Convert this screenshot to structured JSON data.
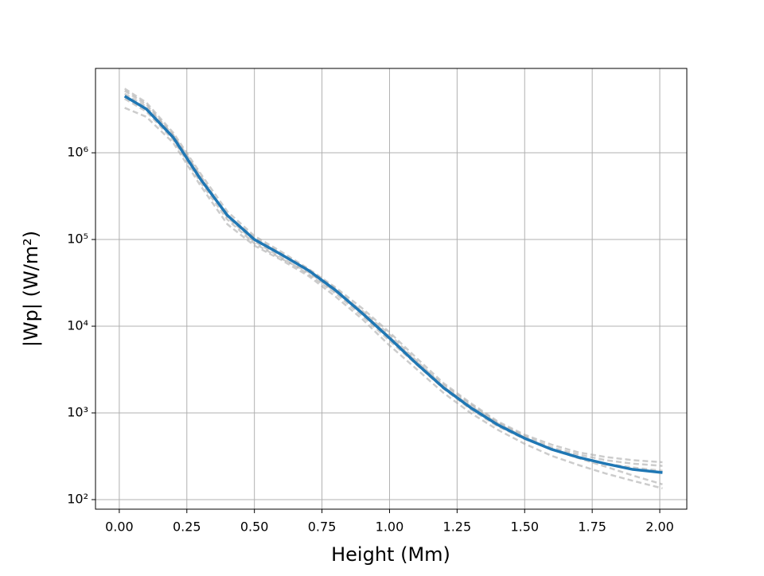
{
  "chart_data": {
    "type": "line",
    "xlabel": "Height (Mm)",
    "ylabel": "|Wp| (W/m²)",
    "log_y": true,
    "grid": true,
    "xlim": [
      -0.088,
      2.1
    ],
    "ylim": [
      77.6,
      9400000
    ],
    "xticks": [
      {
        "value": 0,
        "label": "0.00"
      },
      0.25,
      {
        "value": 0.5,
        "label": "0.50"
      },
      0.75,
      {
        "value": 1,
        "label": "1.00"
      },
      1.25,
      {
        "value": 1.5,
        "label": "1.50"
      },
      1.75,
      {
        "value": 2,
        "label": "2.00"
      }
    ],
    "yticks": [
      {
        "value": 100,
        "label": "10²"
      },
      {
        "value": 1000,
        "label": "10³"
      },
      {
        "value": 10000,
        "label": "10⁴"
      },
      {
        "value": 100000,
        "label": "10⁵"
      },
      {
        "value": 1000000,
        "label": "10⁶"
      }
    ],
    "x": [
      0.02,
      0.1,
      0.2,
      0.3,
      0.4,
      0.5,
      0.6,
      0.7,
      0.8,
      0.9,
      1.0,
      1.1,
      1.2,
      1.3,
      1.4,
      1.5,
      1.6,
      1.7,
      1.8,
      1.9,
      2.01
    ],
    "series": [
      {
        "color": "#aaaaaa",
        "style": "dashed",
        "values": [
          5500000,
          3800000,
          1700000,
          580000,
          210000,
          110000,
          72000,
          46000,
          28000,
          16000,
          8500,
          4300,
          2200,
          1300,
          800,
          560,
          430,
          350,
          310,
          285,
          270
        ]
      },
      {
        "color": "#aaaaaa",
        "style": "dashed",
        "values": [
          3300000,
          2600000,
          1300000,
          420000,
          150000,
          85000,
          58000,
          38000,
          22000,
          12000,
          6000,
          3200,
          1700,
          1000,
          640,
          440,
          320,
          250,
          200,
          165,
          135
        ]
      },
      {
        "color": "#aaaaaa",
        "style": "dashed",
        "values": [
          4800000,
          3400000,
          1600000,
          550000,
          180000,
          95000,
          62000,
          40000,
          24000,
          13000,
          6800,
          3600,
          1900,
          1100,
          700,
          500,
          380,
          310,
          260,
          235,
          215
        ]
      },
      {
        "color": "#aaaaaa",
        "style": "dashed",
        "values": [
          4200000,
          3000000,
          1400000,
          460000,
          170000,
          90000,
          60000,
          42000,
          25000,
          15000,
          8000,
          4000,
          2000,
          1200,
          760,
          520,
          380,
          300,
          240,
          190,
          150
        ]
      },
      {
        "color": "#aaaaaa",
        "style": "dashed",
        "values": [
          5200000,
          3600000,
          1600000,
          520000,
          190000,
          105000,
          68000,
          45000,
          27000,
          14500,
          7500,
          3900,
          2100,
          1250,
          770,
          540,
          400,
          330,
          285,
          260,
          245
        ]
      },
      {
        "color": "#1f77b4",
        "style": "solid",
        "values": [
          4500000,
          3200000,
          1500000,
          500000,
          190000,
          100000,
          67000,
          44000,
          26000,
          14000,
          7300,
          3700,
          1950,
          1150,
          730,
          510,
          380,
          307,
          259,
          223,
          205
        ]
      }
    ]
  }
}
